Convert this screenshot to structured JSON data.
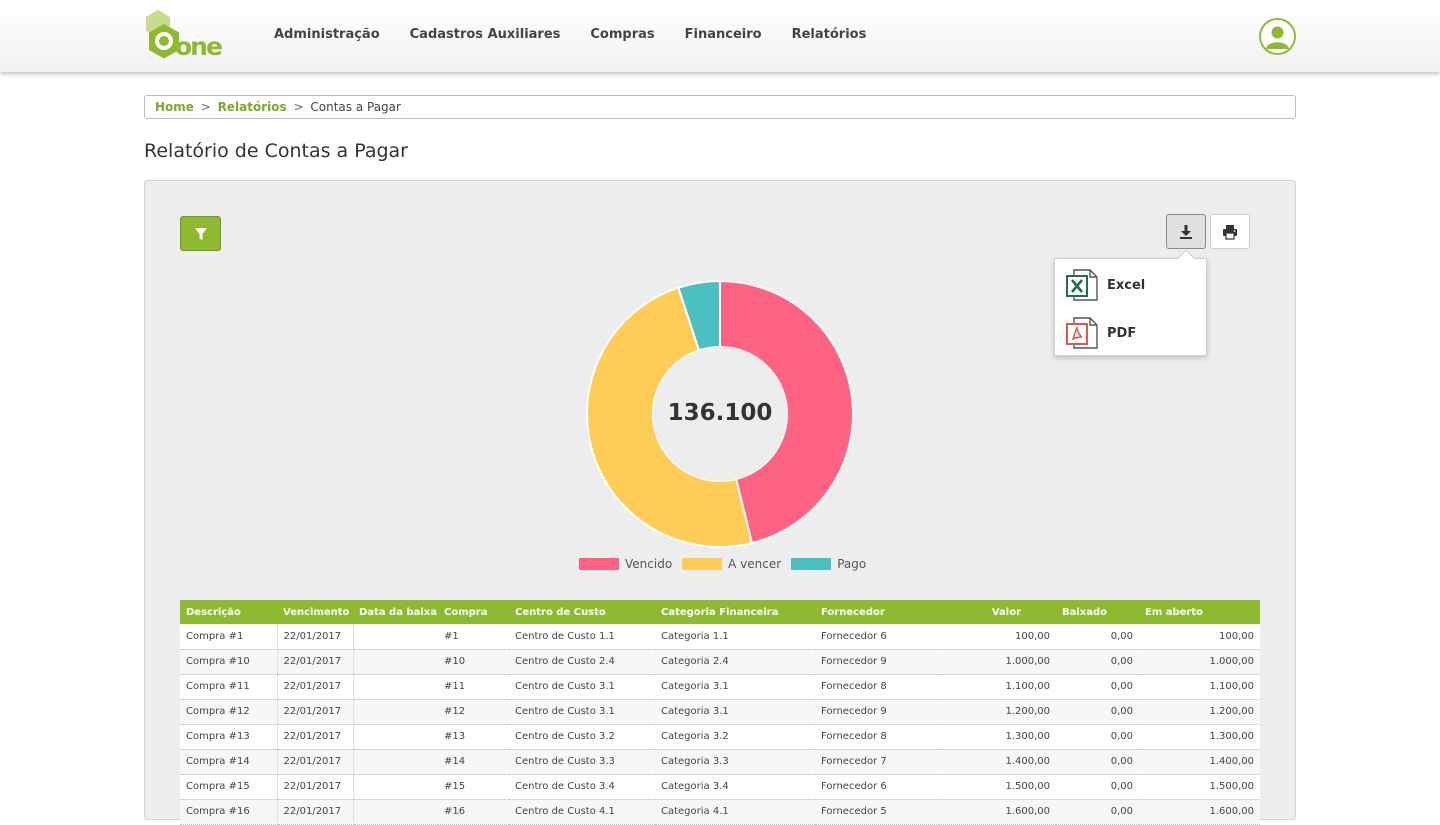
{
  "brand": {
    "logo_text": "one",
    "accent": "#8dba30"
  },
  "nav": {
    "items": [
      {
        "label": "Administração"
      },
      {
        "label": "Cadastros Auxiliares"
      },
      {
        "label": "Compras"
      },
      {
        "label": "Financeiro"
      },
      {
        "label": "Relatórios"
      }
    ]
  },
  "breadcrumb": {
    "home": "Home",
    "sep": ">",
    "reports": "Relatórios",
    "current": "Contas a Pagar"
  },
  "page": {
    "title": "Relatório de Contas a Pagar"
  },
  "toolbar": {
    "filter_icon": "filter-icon",
    "download_icon": "download-icon",
    "print_icon": "print-icon",
    "export_menu": [
      {
        "label": "Excel",
        "icon": "excel-file-icon"
      },
      {
        "label": "PDF",
        "icon": "pdf-file-icon"
      }
    ]
  },
  "chart_data": {
    "type": "pie",
    "center_total": "136.100",
    "categories": [
      "Vencido",
      "A vencer",
      "Pago"
    ],
    "values": [
      62800,
      66400,
      6900
    ],
    "colors": [
      "#ff6384",
      "#ffcd56",
      "#4bc0c0"
    ],
    "legend_position": "bottom"
  },
  "table": {
    "columns": [
      "Descrição",
      "Vencimento",
      "Data da baixa",
      "Compra",
      "Centro de Custo",
      "Categoria Financeira",
      "Fornecedor",
      "Valor",
      "Baixado",
      "Em aberto"
    ],
    "rows": [
      [
        "Compra #1",
        "22/01/2017",
        "",
        "#1",
        "Centro de Custo 1.1",
        "Categoria 1.1",
        "Fornecedor 6",
        "100,00",
        "0,00",
        "100,00"
      ],
      [
        "Compra #10",
        "22/01/2017",
        "",
        "#10",
        "Centro de Custo 2.4",
        "Categoria 2.4",
        "Fornecedor 9",
        "1.000,00",
        "0,00",
        "1.000,00"
      ],
      [
        "Compra #11",
        "22/01/2017",
        "",
        "#11",
        "Centro de Custo 3.1",
        "Categoria 3.1",
        "Fornecedor 8",
        "1.100,00",
        "0,00",
        "1.100,00"
      ],
      [
        "Compra #12",
        "22/01/2017",
        "",
        "#12",
        "Centro de Custo 3.1",
        "Categoria 3.1",
        "Fornecedor 9",
        "1.200,00",
        "0,00",
        "1.200,00"
      ],
      [
        "Compra #13",
        "22/01/2017",
        "",
        "#13",
        "Centro de Custo 3.2",
        "Categoria 3.2",
        "Fornecedor 8",
        "1.300,00",
        "0,00",
        "1.300,00"
      ],
      [
        "Compra #14",
        "22/01/2017",
        "",
        "#14",
        "Centro de Custo 3.3",
        "Categoria 3.3",
        "Fornecedor 7",
        "1.400,00",
        "0,00",
        "1.400,00"
      ],
      [
        "Compra #15",
        "22/01/2017",
        "",
        "#15",
        "Centro de Custo 3.4",
        "Categoria 3.4",
        "Fornecedor 6",
        "1.500,00",
        "0,00",
        "1.500,00"
      ],
      [
        "Compra #16",
        "22/01/2017",
        "",
        "#16",
        "Centro de Custo 4.1",
        "Categoria 4.1",
        "Fornecedor 5",
        "1.600,00",
        "0,00",
        "1.600,00"
      ]
    ]
  }
}
